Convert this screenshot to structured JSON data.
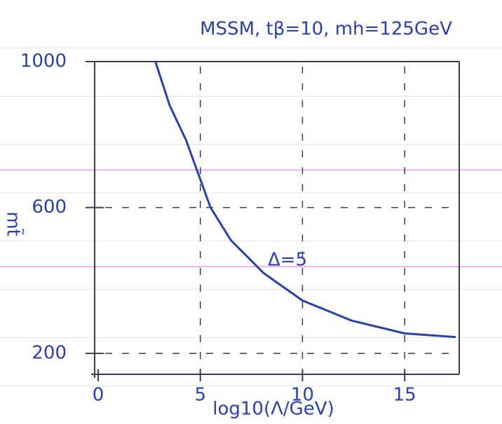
{
  "chart_data": {
    "type": "line",
    "title": "MSSM, tβ=10, mh=125GeV",
    "x_label": "log10(Λ/GeV)",
    "y_label": "mt̃",
    "annotation": "Δ=5",
    "x": [
      2.8,
      3.5,
      4.3,
      5.5,
      6.5,
      8.1,
      10,
      12.4,
      15,
      17.5
    ],
    "series": [
      {
        "color": "#2a3fb0",
        "values": [
          1000,
          880,
          785,
          600,
          510,
          420,
          345,
          290,
          255,
          245
        ]
      }
    ],
    "xlim": [
      0,
      17.5
    ],
    "ylim": [
      160,
      1000
    ],
    "xticks": [
      0,
      5,
      10,
      15
    ],
    "yticks": [
      200,
      600,
      1000
    ],
    "grid": true
  }
}
